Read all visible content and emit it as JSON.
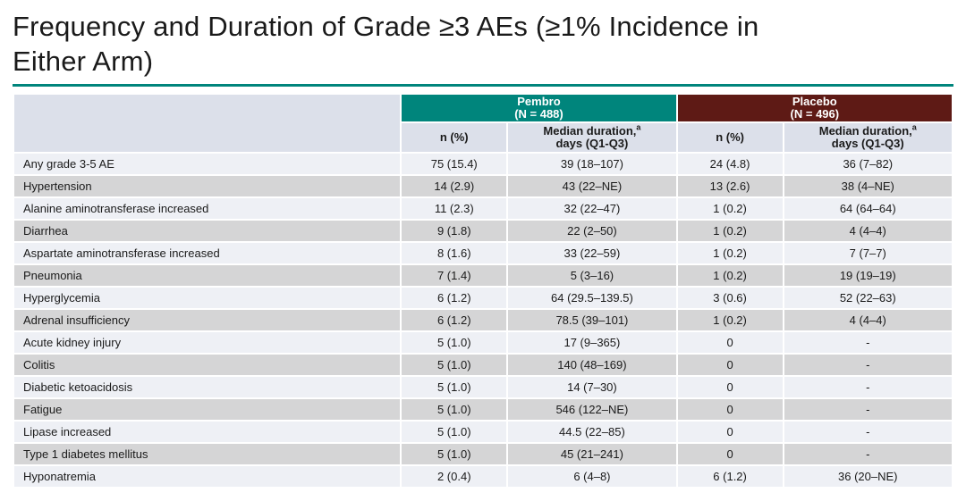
{
  "slide": {
    "title": "Frequency and Duration of Grade ≥3 AEs (≥1% Incidence in\nEither Arm)"
  },
  "colors": {
    "accent_teal": "#00857C",
    "accent_maroon": "#5E1A15",
    "header_cell_bg": "#DCE0EA",
    "row_light": "#EEF0F5",
    "row_gray": "#D5D5D6",
    "text": "#1a1a1a"
  },
  "table": {
    "groups": [
      {
        "name": "Pembro",
        "n_label": "(N = 488)"
      },
      {
        "name": "Placebo",
        "n_label": "(N = 496)"
      }
    ],
    "subheaders": {
      "n_pct": "n (%)",
      "median_line1": "Median duration,",
      "median_sup": "a",
      "median_line2": "days (Q1-Q3)"
    },
    "rows": [
      {
        "ae": "Any grade 3-5 AE",
        "pembro_n": "75 (15.4)",
        "pembro_duration": "39 (18–107)",
        "placebo_n": "24 (4.8)",
        "placebo_duration": "36 (7–82)"
      },
      {
        "ae": "Hypertension",
        "pembro_n": "14 (2.9)",
        "pembro_duration": "43 (22–NE)",
        "placebo_n": "13 (2.6)",
        "placebo_duration": "38 (4–NE)"
      },
      {
        "ae": "Alanine aminotransferase increased",
        "pembro_n": "11 (2.3)",
        "pembro_duration": "32 (22–47)",
        "placebo_n": "1 (0.2)",
        "placebo_duration": "64 (64–64)"
      },
      {
        "ae": "Diarrhea",
        "pembro_n": "9 (1.8)",
        "pembro_duration": "22 (2–50)",
        "placebo_n": "1 (0.2)",
        "placebo_duration": "4 (4–4)"
      },
      {
        "ae": "Aspartate aminotransferase increased",
        "pembro_n": "8 (1.6)",
        "pembro_duration": "33 (22–59)",
        "placebo_n": "1 (0.2)",
        "placebo_duration": "7 (7–7)"
      },
      {
        "ae": "Pneumonia",
        "pembro_n": "7 (1.4)",
        "pembro_duration": "5 (3–16)",
        "placebo_n": "1 (0.2)",
        "placebo_duration": "19 (19–19)"
      },
      {
        "ae": "Hyperglycemia",
        "pembro_n": "6 (1.2)",
        "pembro_duration": "64 (29.5–139.5)",
        "placebo_n": "3 (0.6)",
        "placebo_duration": "52 (22–63)"
      },
      {
        "ae": "Adrenal insufficiency",
        "pembro_n": "6 (1.2)",
        "pembro_duration": "78.5 (39–101)",
        "placebo_n": "1 (0.2)",
        "placebo_duration": "4 (4–4)"
      },
      {
        "ae": "Acute kidney injury",
        "pembro_n": "5 (1.0)",
        "pembro_duration": "17 (9–365)",
        "placebo_n": "0",
        "placebo_duration": "-"
      },
      {
        "ae": "Colitis",
        "pembro_n": "5 (1.0)",
        "pembro_duration": "140 (48–169)",
        "placebo_n": "0",
        "placebo_duration": "-"
      },
      {
        "ae": "Diabetic ketoacidosis",
        "pembro_n": "5 (1.0)",
        "pembro_duration": "14 (7–30)",
        "placebo_n": "0",
        "placebo_duration": "-"
      },
      {
        "ae": "Fatigue",
        "pembro_n": "5 (1.0)",
        "pembro_duration": "546 (122–NE)",
        "placebo_n": "0",
        "placebo_duration": "-"
      },
      {
        "ae": "Lipase increased",
        "pembro_n": "5 (1.0)",
        "pembro_duration": "44.5 (22–85)",
        "placebo_n": "0",
        "placebo_duration": "-"
      },
      {
        "ae": "Type 1 diabetes mellitus",
        "pembro_n": "5 (1.0)",
        "pembro_duration": "45 (21–241)",
        "placebo_n": "0",
        "placebo_duration": "-"
      },
      {
        "ae": "Hyponatremia",
        "pembro_n": "2 (0.4)",
        "pembro_duration": "6 (4–8)",
        "placebo_n": "6 (1.2)",
        "placebo_duration": "36 (20–NE)"
      }
    ]
  }
}
